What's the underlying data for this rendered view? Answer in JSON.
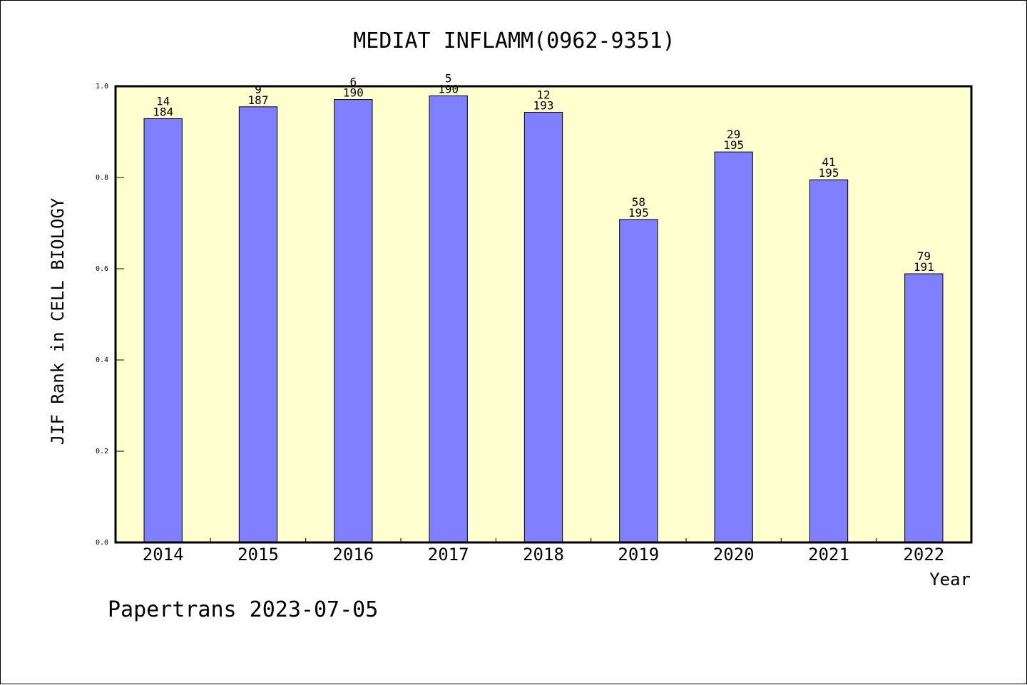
{
  "colors": {
    "plot_background": "#FFFFD0",
    "bar_fill": "#8080FF",
    "bar_stroke": "#000000",
    "axis": "#000000"
  },
  "footer": "Papertrans 2023-07-05",
  "chart_data": {
    "type": "bar",
    "title": "MEDIAT INFLAMM(0962-9351)",
    "xlabel": "Year",
    "ylabel": "JIF Rank in CELL BIOLOGY",
    "ylim": [
      0,
      1.0
    ],
    "yticks": [
      "0.0",
      "0.2",
      "0.4",
      "0.6",
      "0.8",
      "1.0"
    ],
    "grid": false,
    "categories": [
      "2014",
      "2015",
      "2016",
      "2017",
      "2018",
      "2019",
      "2020",
      "2021",
      "2022"
    ],
    "values": [
      0.929,
      0.955,
      0.971,
      0.979,
      0.943,
      0.708,
      0.856,
      0.795,
      0.589
    ],
    "ranks": [
      "14",
      "9",
      "6",
      "5",
      "12",
      "58",
      "29",
      "41",
      "79"
    ],
    "totals": [
      "184",
      "187",
      "190",
      "190",
      "193",
      "195",
      "195",
      "195",
      "191"
    ]
  }
}
